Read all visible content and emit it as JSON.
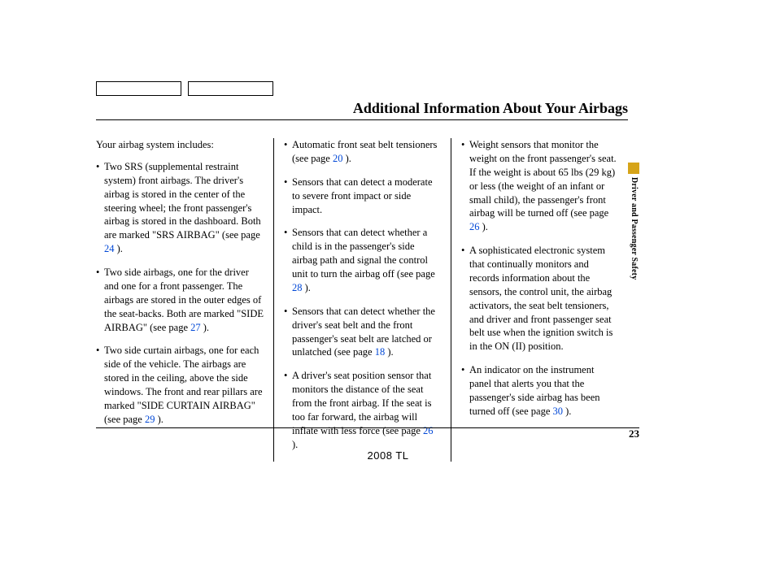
{
  "title": "Additional Information About Your Airbags",
  "sideTab": "Driver and Passenger Safety",
  "pageNumber": "23",
  "footer": "2008  TL",
  "col1": {
    "intro": "Your airbag system includes:",
    "items": [
      {
        "pre": "Two SRS (supplemental restraint system) front airbags. The driver's airbag is stored in the center of the steering wheel; the front passenger's airbag is stored in the dashboard. Both are marked \"SRS AIRBAG\" (see page ",
        "link": "24",
        "post": " )."
      },
      {
        "pre": "Two side airbags, one for the driver and one for a front passenger. The airbags are stored in the outer edges of the seat-backs. Both are marked \"SIDE AIRBAG\" (see page ",
        "link": "27",
        "post": " )."
      },
      {
        "pre": "Two side curtain airbags, one for each side of the vehicle. The airbags are stored in the ceiling, above the side windows. The front and rear pillars are marked \"SIDE CURTAIN AIRBAG\" (see page ",
        "link": "29",
        "post": " )."
      }
    ]
  },
  "col2": {
    "items": [
      {
        "pre": "Automatic front seat belt tensioners (see page ",
        "link": "20",
        "post": " )."
      },
      {
        "pre": "Sensors that can detect a moderate to severe front impact or side impact.",
        "link": "",
        "post": ""
      },
      {
        "pre": "Sensors that can detect whether a child is in the passenger's side airbag path and signal the control unit to turn the airbag off (see page ",
        "link": "28",
        "post": " )."
      },
      {
        "pre": "Sensors that can detect whether the driver's seat belt and the front passenger's seat belt are latched or unlatched (see page ",
        "link": "18",
        "post": " )."
      },
      {
        "pre": "A driver's seat position sensor that monitors the distance of the seat from the front airbag. If the seat is too far forward, the airbag will inflate with less force (see page ",
        "link": "26",
        "post": " )."
      }
    ]
  },
  "col3": {
    "items": [
      {
        "pre": "Weight sensors that monitor the weight on the front passenger's seat. If the weight is about 65 lbs (29 kg) or less (the weight of an infant or small child), the passenger's front airbag will be turned off (see page ",
        "link": "26",
        "post": " )."
      },
      {
        "pre": "A sophisticated electronic system that continually monitors and records information about the sensors, the control unit, the airbag activators, the seat belt tensioners, and driver and front passenger seat belt use when the ignition switch is in the ON (II) position.",
        "link": "",
        "post": ""
      },
      {
        "pre": "An indicator on the instrument panel that alerts you that the passenger's side airbag has been turned off (see page ",
        "link": "30",
        "post": " )."
      }
    ]
  }
}
